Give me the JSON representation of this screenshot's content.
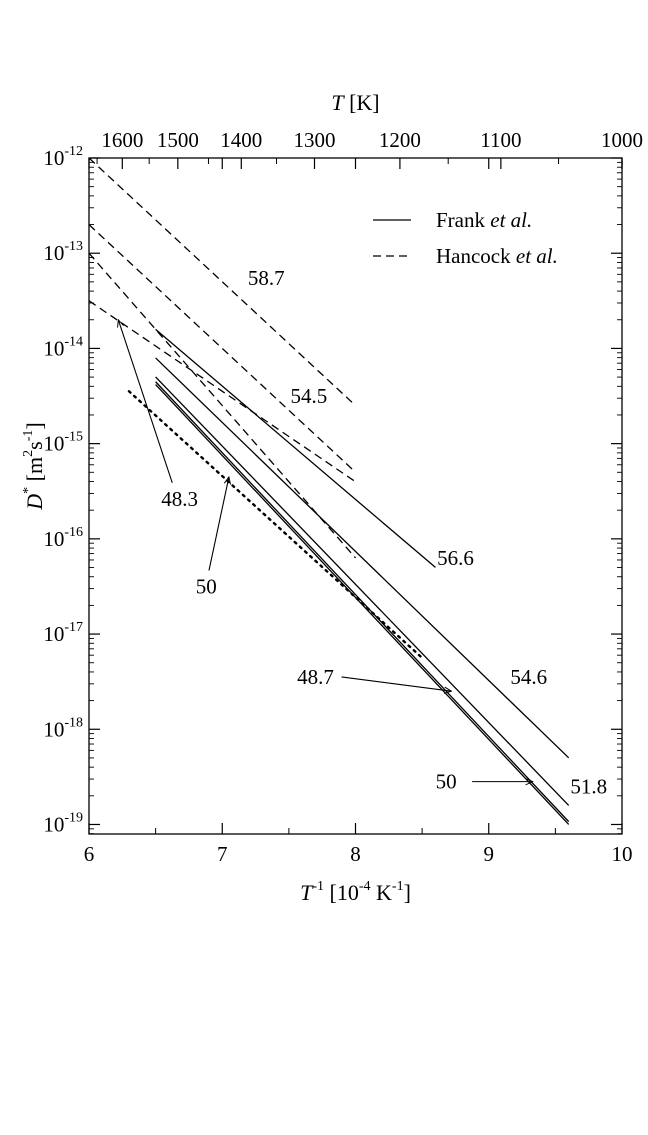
{
  "chart_data": {
    "type": "line",
    "log_y": true,
    "xlim": [
      6,
      10
    ],
    "ylim_exponents": [
      -19.1,
      -12
    ],
    "x_ticks": [
      "6",
      "7",
      "8",
      "9",
      "10"
    ],
    "y_tick_exponents": [
      -19,
      -18,
      -17,
      -16,
      -15,
      -14,
      -13,
      -12
    ],
    "y_tick_base": "10",
    "top_axis": {
      "label_italic": "T",
      "label_unit": "[K]",
      "ticks": [
        "1600",
        "1500",
        "1400",
        "1300",
        "1200",
        "1100",
        "1000"
      ]
    },
    "xlabel": {
      "main": "T",
      "sup": "-1",
      "unit_open": "[10",
      "unit_sup1": "-4",
      "unit_mid": " K",
      "unit_sup2": "-1",
      "unit_close": "]"
    },
    "ylabel": {
      "main": "D",
      "sup": "*",
      "unit_open": "[m",
      "unit_sup1": "2",
      "unit_mid": "s",
      "unit_sup2": "-1",
      "unit_close": "]"
    },
    "legend": {
      "position": "top-right",
      "entries": [
        {
          "style": "solid",
          "name": "Frank",
          "suffix": "et al."
        },
        {
          "style": "dashed",
          "name": "Hancock",
          "suffix": "et al."
        }
      ]
    },
    "series": [
      {
        "style": "dashed",
        "x": [
          6.0,
          8.0
        ],
        "y_exp": [
          -12.0,
          -14.6
        ]
      },
      {
        "style": "dashed",
        "x": [
          6.0,
          8.0
        ],
        "y_exp": [
          -12.7,
          -15.3
        ]
      },
      {
        "style": "dashed",
        "x": [
          6.0,
          8.0
        ],
        "y_exp": [
          -13.0,
          -16.2
        ]
      },
      {
        "style": "dashed",
        "x": [
          6.0,
          8.0
        ],
        "y_exp": [
          -13.5,
          -15.4
        ]
      },
      {
        "style": "solid",
        "x": [
          6.5,
          8.6
        ],
        "y_exp": [
          -13.8,
          -16.3
        ]
      },
      {
        "style": "solid",
        "x": [
          6.5,
          9.6
        ],
        "y_exp": [
          -14.1,
          -18.3
        ]
      },
      {
        "style": "solid",
        "x": [
          6.5,
          9.6
        ],
        "y_exp": [
          -14.3,
          -18.8
        ]
      },
      {
        "style": "solid",
        "x": [
          6.5,
          9.6
        ],
        "y_exp": [
          -14.35,
          -18.97
        ]
      },
      {
        "style": "solid",
        "x": [
          6.5,
          9.6
        ],
        "y_exp": [
          -14.38,
          -19.0
        ]
      },
      {
        "style": "dotted",
        "x": [
          6.3,
          8.5
        ],
        "y_exp": [
          -14.45,
          -17.25
        ]
      }
    ],
    "annotations": [
      {
        "text": "58.7",
        "x": 7.33,
        "y_exp": -13.26
      },
      {
        "text": "54.5",
        "x": 7.65,
        "y_exp": -14.5
      },
      {
        "text": "56.6",
        "x": 8.75,
        "y_exp": -16.2
      },
      {
        "text": "54.6",
        "x": 9.3,
        "y_exp": -17.45
      },
      {
        "text": "51.8",
        "x": 9.75,
        "y_exp": -18.6
      },
      {
        "text": "48.3",
        "x": 6.68,
        "y_exp": -15.58,
        "arrow_to": [
          6.22,
          -13.7
        ]
      },
      {
        "text": "50",
        "x": 6.88,
        "y_exp": -16.5,
        "arrow_to": [
          7.05,
          -15.35
        ]
      },
      {
        "text": "48.7",
        "x": 7.7,
        "y_exp": -17.45,
        "arrow_to": [
          8.72,
          -17.6
        ]
      },
      {
        "text": "50",
        "x": 8.68,
        "y_exp": -18.55,
        "arrow_to": [
          9.33,
          -18.55
        ]
      }
    ]
  }
}
